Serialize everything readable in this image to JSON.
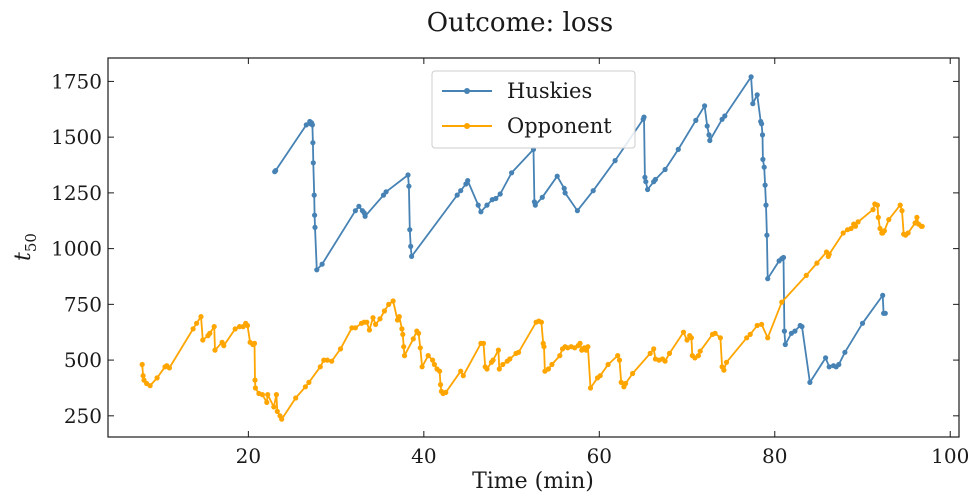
{
  "chart_data": {
    "type": "line",
    "title": "Outcome: loss",
    "xlabel": "Time (min)",
    "ylabel_base": "t",
    "ylabel_sub": "50",
    "xlim": [
      4,
      101
    ],
    "ylim": [
      155,
      1855
    ],
    "xticks": [
      20,
      40,
      60,
      80,
      100
    ],
    "yticks": [
      250,
      500,
      750,
      1000,
      1250,
      1500,
      1750
    ],
    "grid": false,
    "legend_position": "upper-center",
    "series": [
      {
        "name": "Huskies",
        "color": "#4682b4",
        "points": [
          [
            23.0,
            1345
          ],
          [
            23.1,
            1350
          ],
          [
            26.6,
            1555
          ],
          [
            27.0,
            1570
          ],
          [
            27.1,
            1560
          ],
          [
            27.2,
            1565
          ],
          [
            27.3,
            1555
          ],
          [
            27.35,
            1475
          ],
          [
            27.4,
            1385
          ],
          [
            27.5,
            1240
          ],
          [
            27.55,
            1150
          ],
          [
            27.6,
            1095
          ],
          [
            27.8,
            905
          ],
          [
            28.4,
            930
          ],
          [
            32.2,
            1170
          ],
          [
            32.6,
            1190
          ],
          [
            33.0,
            1170
          ],
          [
            33.2,
            1160
          ],
          [
            33.3,
            1145
          ],
          [
            35.4,
            1240
          ],
          [
            35.7,
            1255
          ],
          [
            38.2,
            1330
          ],
          [
            38.3,
            1280
          ],
          [
            38.4,
            1085
          ],
          [
            38.5,
            1010
          ],
          [
            38.6,
            965
          ],
          [
            43.8,
            1240
          ],
          [
            44.2,
            1260
          ],
          [
            44.8,
            1290
          ],
          [
            45.0,
            1305
          ],
          [
            46.2,
            1195
          ],
          [
            46.5,
            1165
          ],
          [
            47.2,
            1195
          ],
          [
            47.8,
            1220
          ],
          [
            48.2,
            1225
          ],
          [
            48.7,
            1245
          ],
          [
            50.0,
            1340
          ],
          [
            52.5,
            1445
          ],
          [
            52.6,
            1210
          ],
          [
            52.7,
            1195
          ],
          [
            53.5,
            1230
          ],
          [
            55.2,
            1325
          ],
          [
            56.0,
            1270
          ],
          [
            56.1,
            1250
          ],
          [
            57.5,
            1170
          ],
          [
            59.3,
            1260
          ],
          [
            61.8,
            1395
          ],
          [
            65.0,
            1580
          ],
          [
            65.1,
            1590
          ],
          [
            65.2,
            1320
          ],
          [
            65.3,
            1300
          ],
          [
            65.5,
            1265
          ],
          [
            66.2,
            1300
          ],
          [
            66.4,
            1310
          ],
          [
            67.5,
            1355
          ],
          [
            69.0,
            1445
          ],
          [
            71.0,
            1575
          ],
          [
            72.0,
            1640
          ],
          [
            72.3,
            1550
          ],
          [
            72.5,
            1510
          ],
          [
            72.6,
            1485
          ],
          [
            74.0,
            1580
          ],
          [
            74.3,
            1595
          ],
          [
            77.3,
            1770
          ],
          [
            77.5,
            1650
          ],
          [
            78.0,
            1690
          ],
          [
            78.4,
            1570
          ],
          [
            78.5,
            1560
          ],
          [
            78.6,
            1510
          ],
          [
            78.65,
            1400
          ],
          [
            78.8,
            1365
          ],
          [
            78.9,
            1285
          ],
          [
            79.0,
            1195
          ],
          [
            79.1,
            1060
          ],
          [
            79.2,
            865
          ],
          [
            80.5,
            945
          ],
          [
            80.8,
            955
          ],
          [
            81.0,
            960
          ],
          [
            81.1,
            630
          ],
          [
            81.2,
            570
          ],
          [
            81.9,
            620
          ],
          [
            82.3,
            630
          ],
          [
            82.9,
            655
          ],
          [
            83.1,
            650
          ],
          [
            84.0,
            400
          ],
          [
            85.8,
            510
          ],
          [
            86.2,
            470
          ],
          [
            86.7,
            475
          ],
          [
            87.0,
            470
          ],
          [
            87.3,
            480
          ],
          [
            88.0,
            535
          ],
          [
            90.0,
            665
          ],
          [
            92.3,
            790
          ],
          [
            92.4,
            710
          ],
          [
            92.6,
            710
          ]
        ]
      },
      {
        "name": "Opponent",
        "color": "#ffa500",
        "points": [
          [
            7.9,
            480
          ],
          [
            8.0,
            430
          ],
          [
            8.1,
            410
          ],
          [
            8.4,
            395
          ],
          [
            8.8,
            385
          ],
          [
            9.6,
            420
          ],
          [
            10.5,
            470
          ],
          [
            10.7,
            475
          ],
          [
            11.0,
            465
          ],
          [
            13.7,
            640
          ],
          [
            14.1,
            665
          ],
          [
            14.6,
            695
          ],
          [
            14.8,
            590
          ],
          [
            15.4,
            610
          ],
          [
            15.6,
            620
          ],
          [
            16.1,
            650
          ],
          [
            16.2,
            545
          ],
          [
            17.0,
            580
          ],
          [
            17.2,
            565
          ],
          [
            18.5,
            640
          ],
          [
            19.0,
            650
          ],
          [
            19.4,
            650
          ],
          [
            19.7,
            665
          ],
          [
            19.9,
            655
          ],
          [
            20.2,
            580
          ],
          [
            20.5,
            570
          ],
          [
            20.7,
            575
          ],
          [
            20.75,
            410
          ],
          [
            20.8,
            375
          ],
          [
            21.2,
            350
          ],
          [
            21.6,
            345
          ],
          [
            22.1,
            310
          ],
          [
            22.2,
            345
          ],
          [
            22.9,
            290
          ],
          [
            23.2,
            345
          ],
          [
            23.3,
            270
          ],
          [
            23.6,
            250
          ],
          [
            23.8,
            235
          ],
          [
            25.4,
            330
          ],
          [
            26.5,
            380
          ],
          [
            26.9,
            400
          ],
          [
            28.2,
            470
          ],
          [
            28.6,
            500
          ],
          [
            29.0,
            500
          ],
          [
            29.5,
            495
          ],
          [
            30.5,
            550
          ],
          [
            31.8,
            645
          ],
          [
            32.2,
            645
          ],
          [
            32.9,
            665
          ],
          [
            33.2,
            670
          ],
          [
            33.5,
            670
          ],
          [
            33.8,
            635
          ],
          [
            34.2,
            690
          ],
          [
            34.5,
            660
          ],
          [
            35.0,
            685
          ],
          [
            35.5,
            720
          ],
          [
            36.0,
            750
          ],
          [
            36.5,
            765
          ],
          [
            37.0,
            680
          ],
          [
            37.2,
            695
          ],
          [
            37.5,
            640
          ],
          [
            37.6,
            615
          ],
          [
            37.7,
            560
          ],
          [
            37.8,
            520
          ],
          [
            38.8,
            595
          ],
          [
            39.2,
            630
          ],
          [
            39.4,
            620
          ],
          [
            39.6,
            555
          ],
          [
            39.8,
            470
          ],
          [
            40.5,
            520
          ],
          [
            41.0,
            500
          ],
          [
            41.2,
            480
          ],
          [
            41.5,
            460
          ],
          [
            41.8,
            450
          ],
          [
            41.9,
            390
          ],
          [
            42.0,
            360
          ],
          [
            42.2,
            350
          ],
          [
            42.5,
            355
          ],
          [
            44.2,
            450
          ],
          [
            44.5,
            430
          ],
          [
            46.5,
            575
          ],
          [
            46.8,
            575
          ],
          [
            47.0,
            470
          ],
          [
            47.2,
            460
          ],
          [
            47.7,
            490
          ],
          [
            47.9,
            500
          ],
          [
            48.5,
            545
          ],
          [
            48.6,
            460
          ],
          [
            49.0,
            480
          ],
          [
            49.5,
            495
          ],
          [
            49.8,
            505
          ],
          [
            50.5,
            530
          ],
          [
            50.8,
            535
          ],
          [
            52.8,
            670
          ],
          [
            53.1,
            675
          ],
          [
            53.4,
            670
          ],
          [
            53.6,
            575
          ],
          [
            53.7,
            560
          ],
          [
            53.8,
            450
          ],
          [
            54.2,
            460
          ],
          [
            54.6,
            480
          ],
          [
            55.5,
            520
          ],
          [
            55.8,
            550
          ],
          [
            56.1,
            560
          ],
          [
            56.4,
            555
          ],
          [
            56.8,
            560
          ],
          [
            57.2,
            555
          ],
          [
            57.6,
            565
          ],
          [
            57.8,
            575
          ],
          [
            58.0,
            545
          ],
          [
            58.3,
            555
          ],
          [
            58.5,
            545
          ],
          [
            58.7,
            560
          ],
          [
            59.0,
            375
          ],
          [
            59.8,
            420
          ],
          [
            60.1,
            430
          ],
          [
            61.0,
            480
          ],
          [
            62.1,
            520
          ],
          [
            62.3,
            500
          ],
          [
            62.5,
            400
          ],
          [
            62.8,
            380
          ],
          [
            63.0,
            395
          ],
          [
            63.8,
            440
          ],
          [
            65.8,
            530
          ],
          [
            66.2,
            550
          ],
          [
            66.4,
            505
          ],
          [
            66.8,
            500
          ],
          [
            67.2,
            505
          ],
          [
            67.5,
            495
          ],
          [
            68.0,
            530
          ],
          [
            69.6,
            625
          ],
          [
            70.0,
            590
          ],
          [
            70.3,
            610
          ],
          [
            70.5,
            600
          ],
          [
            70.6,
            520
          ],
          [
            70.9,
            510
          ],
          [
            71.3,
            520
          ],
          [
            71.5,
            540
          ],
          [
            72.9,
            615
          ],
          [
            73.2,
            620
          ],
          [
            73.8,
            600
          ],
          [
            74.0,
            470
          ],
          [
            74.2,
            455
          ],
          [
            74.5,
            490
          ],
          [
            76.8,
            600
          ],
          [
            77.2,
            615
          ],
          [
            78.0,
            655
          ],
          [
            78.5,
            660
          ],
          [
            79.2,
            600
          ],
          [
            80.8,
            760
          ],
          [
            83.6,
            880
          ],
          [
            84.8,
            935
          ],
          [
            85.9,
            985
          ],
          [
            86.1,
            965
          ],
          [
            86.2,
            975
          ],
          [
            87.8,
            1070
          ],
          [
            88.3,
            1085
          ],
          [
            88.7,
            1090
          ],
          [
            89.0,
            1110
          ],
          [
            89.2,
            1100
          ],
          [
            89.5,
            1120
          ],
          [
            91.2,
            1175
          ],
          [
            91.4,
            1200
          ],
          [
            91.7,
            1195
          ],
          [
            91.8,
            1140
          ],
          [
            92.0,
            1090
          ],
          [
            92.2,
            1070
          ],
          [
            92.3,
            1070
          ],
          [
            92.5,
            1080
          ],
          [
            93.0,
            1130
          ],
          [
            94.3,
            1195
          ],
          [
            94.5,
            1170
          ],
          [
            94.7,
            1065
          ],
          [
            94.9,
            1060
          ],
          [
            95.2,
            1070
          ],
          [
            96.0,
            1115
          ],
          [
            96.2,
            1140
          ],
          [
            96.4,
            1110
          ],
          [
            96.7,
            1100
          ],
          [
            96.8,
            1100
          ]
        ]
      }
    ]
  }
}
